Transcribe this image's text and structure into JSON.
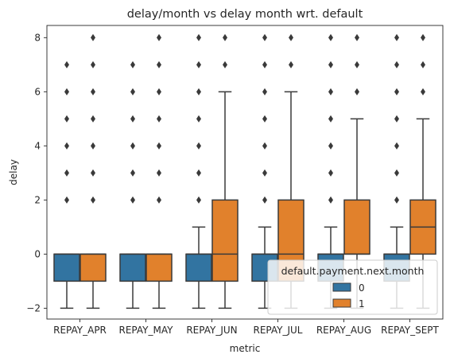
{
  "chart_data": {
    "type": "box",
    "title": "delay/month vs delay month wrt. default",
    "xlabel": "metric",
    "ylabel": "delay",
    "ylim": [
      -2.4,
      8.45
    ],
    "yticks": [
      {
        "value": -2,
        "label": "−2"
      },
      {
        "value": 0,
        "label": "0"
      },
      {
        "value": 2,
        "label": "2"
      },
      {
        "value": 4,
        "label": "4"
      },
      {
        "value": 6,
        "label": "6"
      },
      {
        "value": 8,
        "label": "8"
      }
    ],
    "categories": [
      "REPAY_APR",
      "REPAY_MAY",
      "REPAY_JUN",
      "REPAY_JUL",
      "REPAY_AUG",
      "REPAY_SEPT"
    ],
    "legend": {
      "title": "default.payment.next.month",
      "placement": "lower-right",
      "entries": [
        "0",
        "1"
      ]
    },
    "series": [
      {
        "hue": "0",
        "color": "#3274a1",
        "boxes": [
          {
            "whislo": -2,
            "q1": -1,
            "med": 0,
            "q3": 0,
            "whishi": 0,
            "fliers": [
              2,
              3,
              4,
              5,
              6,
              7
            ]
          },
          {
            "whislo": -2,
            "q1": -1,
            "med": 0,
            "q3": 0,
            "whishi": 0,
            "fliers": [
              2,
              3,
              4,
              5,
              6,
              7
            ]
          },
          {
            "whislo": -2,
            "q1": -1,
            "med": 0,
            "q3": 0,
            "whishi": 1,
            "fliers": [
              2,
              3,
              4,
              5,
              6,
              7,
              8
            ]
          },
          {
            "whislo": -2,
            "q1": -1,
            "med": 0,
            "q3": 0,
            "whishi": 1,
            "fliers": [
              2,
              3,
              4,
              5,
              6,
              7,
              8
            ]
          },
          {
            "whislo": -2,
            "q1": -1,
            "med": 0,
            "q3": 0,
            "whishi": 1,
            "fliers": [
              2,
              3,
              4,
              5,
              6,
              7,
              8
            ]
          },
          {
            "whislo": -2,
            "q1": -1,
            "med": 0,
            "q3": 0,
            "whishi": 1,
            "fliers": [
              2,
              3,
              4,
              5,
              6,
              7,
              8
            ]
          }
        ]
      },
      {
        "hue": "1",
        "color": "#e1812c",
        "boxes": [
          {
            "whislo": -2,
            "q1": -1,
            "med": 0,
            "q3": 0,
            "whishi": 0,
            "fliers": [
              2,
              3,
              4,
              5,
              6,
              7,
              8
            ]
          },
          {
            "whislo": -2,
            "q1": -1,
            "med": 0,
            "q3": 0,
            "whishi": 0,
            "fliers": [
              2,
              3,
              4,
              5,
              6,
              7,
              8
            ]
          },
          {
            "whislo": -2,
            "q1": -1,
            "med": 0,
            "q3": 2,
            "whishi": 6,
            "fliers": [
              7,
              8
            ]
          },
          {
            "whislo": -2,
            "q1": -1,
            "med": 0,
            "q3": 2,
            "whishi": 6,
            "fliers": [
              7,
              8
            ]
          },
          {
            "whislo": -2,
            "q1": 0,
            "med": 0,
            "q3": 2,
            "whishi": 5,
            "fliers": [
              6,
              7,
              8
            ]
          },
          {
            "whislo": -2,
            "q1": 0,
            "med": 1,
            "q3": 2,
            "whishi": 5,
            "fliers": [
              6,
              7,
              8
            ]
          }
        ]
      }
    ]
  }
}
